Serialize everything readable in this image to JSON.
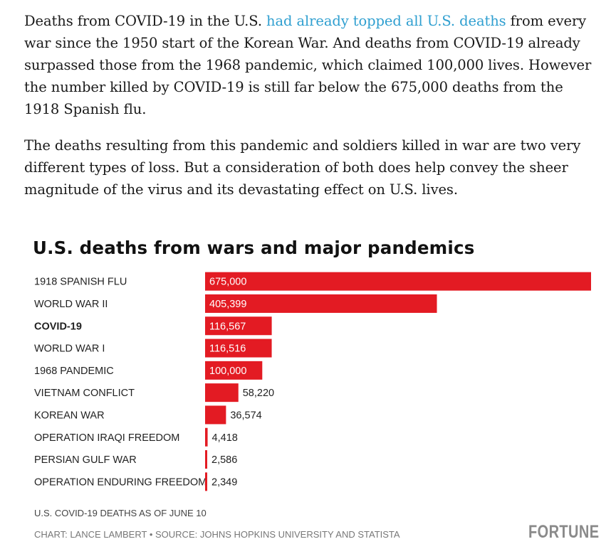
{
  "article": {
    "p1_before_link": "Deaths from COVID-19 in the U.S. ",
    "p1_link": "had already topped all U.S. deaths",
    "p1_after_link": " from every war since the 1950 start of the Korean War. And deaths from COVID-19 already surpassed those from the 1968 pandemic, which claimed 100,000 lives. However the number killed by COVID-19 is still far below the 675,000 deaths from the 1918 Spanish flu.",
    "p2": "The deaths resulting from this pandemic and soldiers killed in war are two very different types of loss. But a consideration of both does help convey the sheer magnitude of the virus and its devastating effect on U.S. lives."
  },
  "colors": {
    "bar": "#e31b23",
    "link": "#2f9fd0"
  },
  "chart_data": {
    "type": "bar",
    "orientation": "horizontal",
    "title": "U.S. deaths from wars and major pandemics",
    "categories": [
      "1918 SPANISH FLU",
      "WORLD WAR II",
      "COVID-19",
      "WORLD WAR I",
      "1968 PANDEMIC",
      "VIETNAM CONFLICT",
      "KOREAN WAR",
      "OPERATION IRAQI FREEDOM",
      "PERSIAN GULF WAR",
      "OPERATION ENDURING FREEDOM"
    ],
    "values": [
      675000,
      405399,
      116567,
      116516,
      100000,
      58220,
      36574,
      4418,
      2586,
      2349
    ],
    "value_labels": [
      "675,000",
      "405,399",
      "116,567",
      "116,516",
      "100,000",
      "58,220",
      "36,574",
      "4,418",
      "2,586",
      "2,349"
    ],
    "highlight": "COVID-19",
    "xlim": [
      0,
      675000
    ],
    "note": "U.S. COVID-19 DEATHS AS OF JUNE 10",
    "credit": "CHART: LANCE LAMBERT • SOURCE: JOHNS HOPKINS UNIVERSITY AND STATISTA"
  },
  "brand": "FORTUNE"
}
